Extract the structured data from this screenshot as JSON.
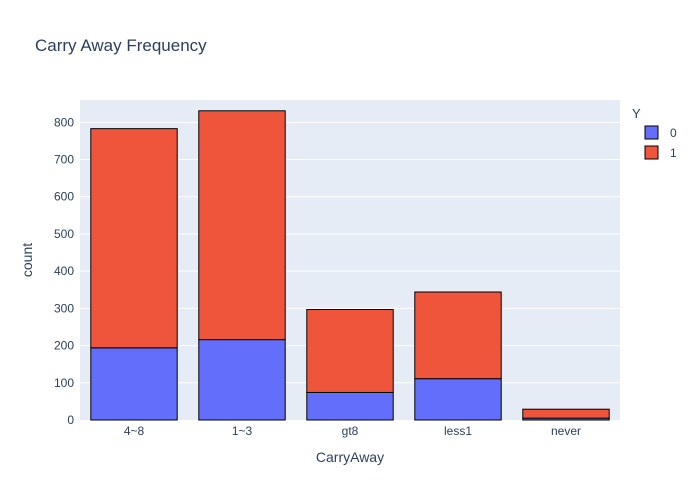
{
  "chart_data": {
    "type": "bar",
    "barmode": "stack",
    "title": "Carry Away Frequency",
    "xlabel": "CarryAway",
    "ylabel": "count",
    "categories": [
      "4~8",
      "1~3",
      "gt8",
      "less1",
      "never"
    ],
    "ylim": [
      0,
      860
    ],
    "yticks": [
      0,
      100,
      200,
      300,
      400,
      500,
      600,
      700,
      800
    ],
    "grid": true,
    "legend": {
      "title": "Y",
      "position": "top-right"
    },
    "series": [
      {
        "name": "0",
        "color": "#636efa",
        "values": [
          194,
          216,
          74,
          111,
          5
        ]
      },
      {
        "name": "1",
        "color": "#ef553b",
        "values": [
          589,
          615,
          223,
          233,
          24
        ]
      }
    ],
    "plot_bg": "#e5ecf6",
    "text_color": "#2a3f5f",
    "bar_outline": "#000000"
  }
}
